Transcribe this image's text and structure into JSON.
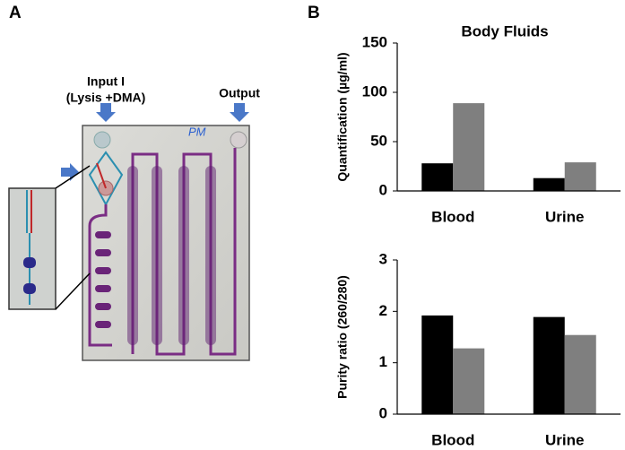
{
  "panel_a": {
    "label": "A",
    "input_label": "Input I",
    "input_sublabel": "(Lysis +DMA)",
    "output_label": "Output",
    "chip_mark": "PM"
  },
  "panel_b": {
    "label": "B"
  },
  "chart_data": [
    {
      "type": "bar",
      "title": "Body Fluids",
      "y_label": "Quantification (µg/ml)",
      "categories": [
        "Blood",
        "Urine"
      ],
      "series": [
        {
          "color": "#000000",
          "values": [
            28,
            13
          ]
        },
        {
          "color": "#7f7f7f",
          "values": [
            89,
            29
          ]
        }
      ],
      "ylim": [
        0,
        150
      ],
      "yticks": [
        0,
        50,
        100,
        150
      ]
    },
    {
      "type": "bar",
      "y_label": "Purity ratio (260/280)",
      "categories": [
        "Blood",
        "Urine"
      ],
      "series": [
        {
          "color": "#000000",
          "values": [
            1.92,
            1.89
          ]
        },
        {
          "color": "#7f7f7f",
          "values": [
            1.28,
            1.54
          ]
        }
      ],
      "ylim": [
        0,
        3
      ],
      "yticks": [
        0,
        1,
        2,
        3
      ]
    }
  ]
}
